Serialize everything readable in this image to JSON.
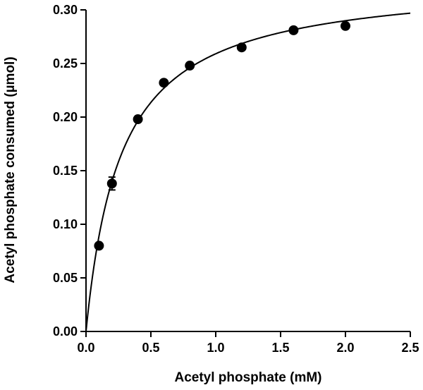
{
  "chart_data": {
    "type": "scatter",
    "title": "",
    "xlabel": "Acetyl phosphate (mM)",
    "ylabel": "Acetyl phosphate consumed (µmol)",
    "xlim": [
      0,
      2.5
    ],
    "ylim": [
      0,
      0.3
    ],
    "xticks": [
      0.0,
      0.5,
      1.0,
      1.5,
      2.0,
      2.5
    ],
    "xtick_labels": [
      "0.0",
      "0.5",
      "1.0",
      "1.5",
      "2.0",
      "2.5"
    ],
    "yticks": [
      0.0,
      0.05,
      0.1,
      0.15,
      0.2,
      0.25,
      0.3
    ],
    "ytick_labels": [
      "0.00",
      "0.05",
      "0.10",
      "0.15",
      "0.20",
      "0.25",
      "0.30"
    ],
    "grid": false,
    "legend": "none",
    "series": [
      {
        "kind": "points",
        "x": [
          0.1,
          0.2,
          0.4,
          0.6,
          0.8,
          1.2,
          1.6,
          2.0
        ],
        "y": [
          0.08,
          0.138,
          0.198,
          0.232,
          0.248,
          0.265,
          0.281,
          0.285
        ],
        "error": [
          0.0,
          0.006,
          0.0,
          0.0,
          0.0,
          0.0,
          0.0,
          0.0
        ]
      },
      {
        "kind": "fit-curve",
        "model": "Michaelis-Menten",
        "vmax": 0.329,
        "km": 0.27
      }
    ],
    "colors": {
      "marker": "#000000",
      "line": "#000000",
      "axis": "#000000"
    }
  }
}
